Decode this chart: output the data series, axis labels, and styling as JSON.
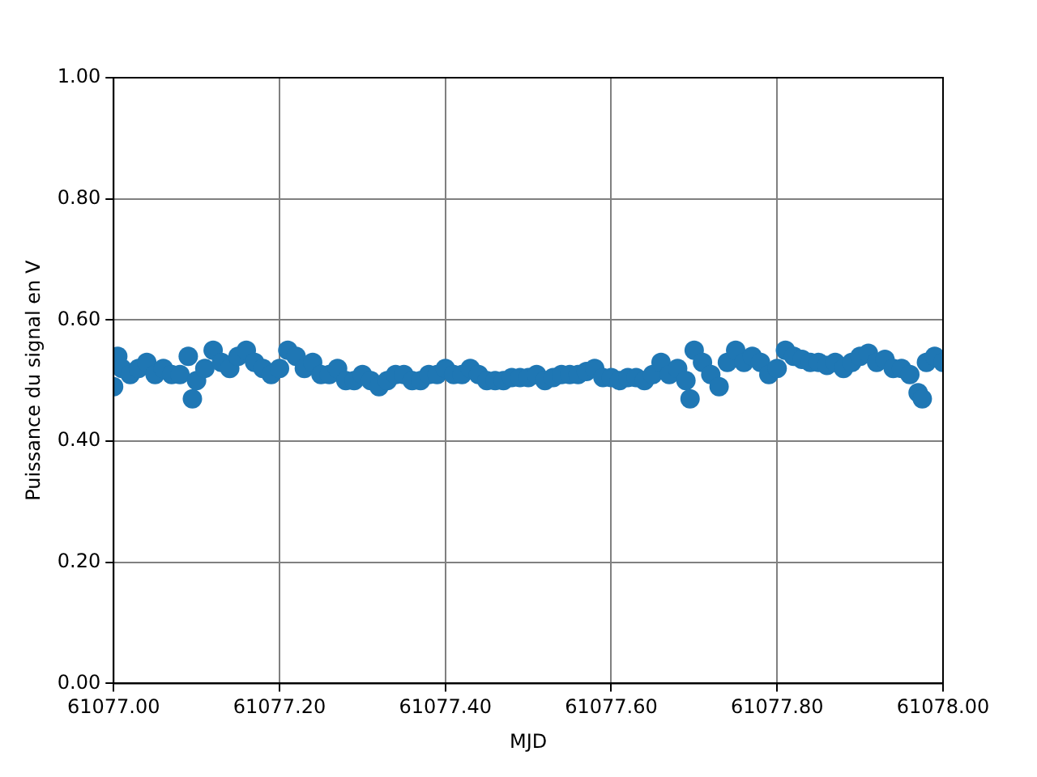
{
  "chart_data": {
    "type": "scatter",
    "xlabel": "MJD",
    "ylabel": "Puissance du signal en V",
    "marker": "circle",
    "grid": true,
    "xlim": [
      61077,
      61078
    ],
    "ylim": [
      0,
      1
    ],
    "xticks": [
      {
        "value": 61077,
        "label": "61077.00"
      },
      {
        "value": 61077.2,
        "label": "61077.20"
      },
      {
        "value": 61077.4,
        "label": "61077.40"
      },
      {
        "value": 61077.6,
        "label": "61077.60"
      },
      {
        "value": 61077.8,
        "label": "61077.80"
      },
      {
        "value": 61078,
        "label": "61078.00"
      }
    ],
    "yticks": [
      {
        "value": 0,
        "label": "0.00"
      },
      {
        "value": 0.2,
        "label": "0.20"
      },
      {
        "value": 0.4,
        "label": "0.40"
      },
      {
        "value": 0.6,
        "label": "0.60"
      },
      {
        "value": 0.8,
        "label": "0.80"
      },
      {
        "value": 1,
        "label": "1.00"
      }
    ],
    "series": [
      {
        "color": "#1f77b4",
        "x": [
          61077.0,
          61077.005,
          61077.01,
          61077.02,
          61077.03,
          61077.04,
          61077.05,
          61077.06,
          61077.07,
          61077.08,
          61077.09,
          61077.095,
          61077.1,
          61077.11,
          61077.12,
          61077.13,
          61077.14,
          61077.15,
          61077.16,
          61077.17,
          61077.18,
          61077.19,
          61077.2,
          61077.21,
          61077.22,
          61077.23,
          61077.24,
          61077.25,
          61077.26,
          61077.27,
          61077.28,
          61077.29,
          61077.3,
          61077.31,
          61077.32,
          61077.33,
          61077.34,
          61077.35,
          61077.36,
          61077.37,
          61077.38,
          61077.39,
          61077.4,
          61077.41,
          61077.42,
          61077.43,
          61077.44,
          61077.45,
          61077.46,
          61077.47,
          61077.48,
          61077.49,
          61077.5,
          61077.51,
          61077.52,
          61077.53,
          61077.54,
          61077.55,
          61077.56,
          61077.57,
          61077.58,
          61077.59,
          61077.6,
          61077.61,
          61077.62,
          61077.63,
          61077.64,
          61077.65,
          61077.66,
          61077.67,
          61077.68,
          61077.69,
          61077.695,
          61077.7,
          61077.71,
          61077.72,
          61077.73,
          61077.74,
          61077.75,
          61077.76,
          61077.77,
          61077.78,
          61077.79,
          61077.8,
          61077.81,
          61077.82,
          61077.83,
          61077.84,
          61077.85,
          61077.86,
          61077.87,
          61077.88,
          61077.89,
          61077.9,
          61077.91,
          61077.92,
          61077.93,
          61077.94,
          61077.95,
          61077.96,
          61077.97,
          61077.975,
          61077.98,
          61077.99,
          61078.0
        ],
        "values": [
          0.49,
          0.54,
          0.52,
          0.51,
          0.52,
          0.53,
          0.51,
          0.52,
          0.51,
          0.51,
          0.54,
          0.47,
          0.5,
          0.52,
          0.55,
          0.53,
          0.52,
          0.54,
          0.55,
          0.53,
          0.52,
          0.51,
          0.52,
          0.55,
          0.54,
          0.52,
          0.53,
          0.51,
          0.51,
          0.52,
          0.5,
          0.5,
          0.51,
          0.5,
          0.49,
          0.5,
          0.51,
          0.51,
          0.5,
          0.5,
          0.51,
          0.51,
          0.52,
          0.51,
          0.51,
          0.52,
          0.51,
          0.5,
          0.5,
          0.5,
          0.505,
          0.505,
          0.505,
          0.51,
          0.5,
          0.505,
          0.51,
          0.51,
          0.51,
          0.515,
          0.52,
          0.505,
          0.505,
          0.5,
          0.505,
          0.505,
          0.5,
          0.51,
          0.53,
          0.51,
          0.52,
          0.5,
          0.47,
          0.55,
          0.53,
          0.51,
          0.49,
          0.53,
          0.55,
          0.53,
          0.54,
          0.53,
          0.51,
          0.52,
          0.55,
          0.54,
          0.535,
          0.53,
          0.53,
          0.525,
          0.53,
          0.52,
          0.53,
          0.54,
          0.545,
          0.53,
          0.535,
          0.52,
          0.52,
          0.51,
          0.48,
          0.47,
          0.53,
          0.54,
          0.53
        ]
      }
    ]
  }
}
